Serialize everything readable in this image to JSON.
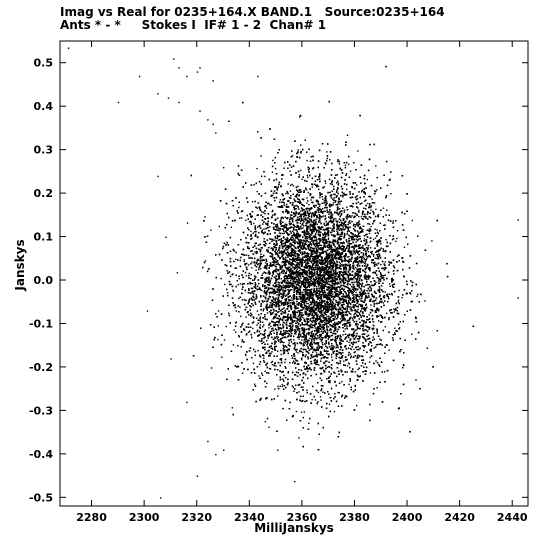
{
  "header": {
    "line1": "Imag vs Real for 0235+164.X BAND.1   Source:0235+164",
    "line2": "Ants * - *     Stokes I  IF# 1 - 2  Chan# 1"
  },
  "chart_data": {
    "type": "scatter",
    "title": "Imag vs Real for 0235+164.X BAND.1   Source:0235+164",
    "subtitle": "Ants * - *     Stokes I  IF# 1 - 2  Chan# 1",
    "xlabel": "MilliJanskys",
    "ylabel": "Janskys",
    "xlim": [
      2268,
      2446
    ],
    "ylim": [
      -0.52,
      0.55
    ],
    "xticks": [
      2280,
      2300,
      2320,
      2340,
      2360,
      2380,
      2400,
      2420,
      2440
    ],
    "yticks": [
      -0.5,
      -0.4,
      -0.3,
      -0.2,
      -0.1,
      0.0,
      0.1,
      0.2,
      0.3,
      0.4,
      0.5
    ],
    "ytick_labels": [
      "-0.5",
      "-0.4",
      "-0.3",
      "-0.2",
      "-0.1",
      "0.0",
      "0.1",
      "0.2",
      "0.3",
      "0.4",
      "0.5"
    ],
    "grid": false,
    "marker_color": "#000000",
    "distribution": {
      "center": [
        2365,
        0.0
      ],
      "std": [
        14,
        0.115
      ],
      "count": 16000
    },
    "outliers": [
      [
        2271,
        0.535
      ],
      [
        2290,
        0.41
      ],
      [
        2298,
        0.47
      ],
      [
        2305,
        0.43
      ],
      [
        2309,
        0.42
      ],
      [
        2313,
        0.41
      ],
      [
        2313,
        0.49
      ],
      [
        2316,
        0.47
      ],
      [
        2321,
        0.49
      ],
      [
        2320,
        0.48
      ],
      [
        2326,
        0.46
      ],
      [
        2343,
        0.47
      ],
      [
        2311,
        0.51
      ],
      [
        2321,
        0.39
      ],
      [
        2324,
        0.37
      ],
      [
        2326,
        0.36
      ],
      [
        2330,
        0.26
      ],
      [
        2327,
        0.34
      ],
      [
        2305,
        0.24
      ],
      [
        2308,
        0.1
      ],
      [
        2301,
        -0.07
      ],
      [
        2306,
        -0.5
      ],
      [
        2310,
        -0.18
      ],
      [
        2320,
        -0.45
      ],
      [
        2324,
        -0.37
      ],
      [
        2442,
        0.14
      ],
      [
        2442,
        -0.04
      ],
      [
        2327,
        -0.4
      ],
      [
        2330,
        -0.39
      ],
      [
        2316,
        -0.28
      ]
    ]
  }
}
